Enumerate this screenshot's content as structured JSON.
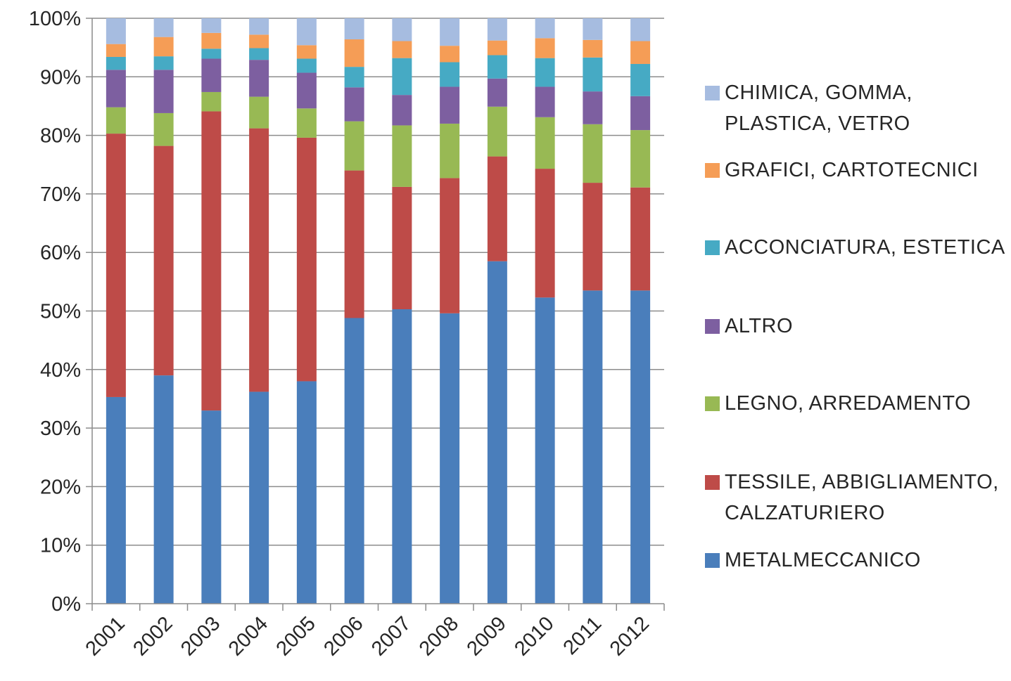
{
  "chart_data": {
    "type": "bar",
    "stacked": true,
    "percent": true,
    "categories": [
      "2001",
      "2002",
      "2003",
      "2004",
      "2005",
      "2006",
      "2007",
      "2008",
      "2009",
      "2010",
      "2011",
      "2012"
    ],
    "y_ticks": [
      "0%",
      "10%",
      "20%",
      "30%",
      "40%",
      "50%",
      "60%",
      "70%",
      "80%",
      "90%",
      "100%"
    ],
    "ylim": [
      0,
      100
    ],
    "legend_position": "right",
    "series": [
      {
        "name": "METALMECCANICO",
        "color": "#4A7EBB",
        "values": [
          35.3,
          39.0,
          33.0,
          36.2,
          38.0,
          48.8,
          50.3,
          49.6,
          58.5,
          52.3,
          53.5,
          53.5
        ]
      },
      {
        "name": "TESSILE, ABBIGLIAMENTO, CALZATURIERO",
        "color": "#BE4B48",
        "values": [
          45.0,
          39.2,
          51.1,
          45.0,
          41.6,
          25.2,
          20.9,
          23.1,
          17.9,
          22.0,
          18.4,
          17.6
        ]
      },
      {
        "name": "LEGNO, ARREDAMENTO",
        "color": "#98B954",
        "values": [
          4.5,
          5.6,
          3.3,
          5.4,
          5.0,
          8.4,
          10.5,
          9.3,
          8.5,
          8.8,
          10.0,
          9.8
        ]
      },
      {
        "name": "ALTRO",
        "color": "#7D5FA0",
        "values": [
          6.4,
          7.4,
          5.7,
          6.3,
          6.1,
          5.8,
          5.2,
          6.3,
          4.8,
          5.2,
          5.6,
          5.8
        ]
      },
      {
        "name": "ACCONCIATURA, ESTETICA",
        "color": "#46AAC4",
        "values": [
          2.2,
          2.3,
          1.7,
          2.0,
          2.4,
          3.5,
          6.3,
          4.2,
          4.0,
          4.9,
          5.8,
          5.5
        ]
      },
      {
        "name": "GRAFICI, CARTOTECNICI",
        "color": "#F59D56",
        "values": [
          2.2,
          3.3,
          2.7,
          2.3,
          2.3,
          4.7,
          2.9,
          2.8,
          2.5,
          3.4,
          3.0,
          3.9
        ]
      },
      {
        "name": "CHIMICA, GOMMA, PLASTICA, VETRO",
        "color": "#A6BCE0",
        "values": [
          4.4,
          3.2,
          2.5,
          2.8,
          4.6,
          3.6,
          3.9,
          4.7,
          3.8,
          3.4,
          3.7,
          3.9
        ]
      }
    ],
    "legend_labels": [
      "CHIMICA, GOMMA,\nPLASTICA, VETRO",
      "GRAFICI, CARTOTECNICI",
      "ACCONCIATURA, ESTETICA",
      "ALTRO",
      "LEGNO, ARREDAMENTO",
      "TESSILE, ABBIGLIAMENTO,\nCALZATURIERO",
      "METALMECCANICO"
    ],
    "legend_colors": [
      "#A6BCE0",
      "#F59D56",
      "#46AAC4",
      "#7D5FA0",
      "#98B954",
      "#BE4B48",
      "#4A7EBB"
    ],
    "grid": true
  }
}
